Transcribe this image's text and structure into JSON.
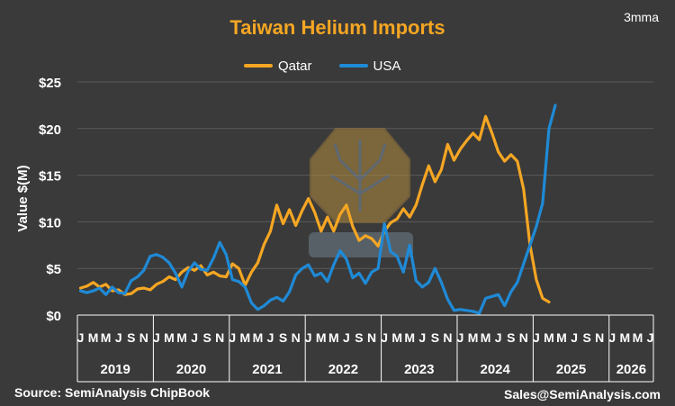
{
  "chart_data": {
    "type": "line",
    "title": "Taiwan Helium Imports",
    "badge": "3mma",
    "ylabel": "Value $(M)",
    "ylim": [
      0,
      25
    ],
    "y_ticks": [
      0,
      5,
      10,
      15,
      20,
      25
    ],
    "y_tick_labels": [
      "$0",
      "$5",
      "$10",
      "$15",
      "$20",
      "$25"
    ],
    "grid": true,
    "legend_position": "top-center",
    "x_start": "2019-01",
    "months_total": 91,
    "month_tick_labels": [
      "J",
      "M",
      "M",
      "J",
      "S",
      "N"
    ],
    "years": [
      "2019",
      "2020",
      "2021",
      "2022",
      "2023",
      "2024",
      "2025",
      "2026"
    ],
    "series": [
      {
        "name": "Qatar",
        "color": "#f5a623",
        "values": [
          2.9,
          3.1,
          3.5,
          3.0,
          3.3,
          2.6,
          2.7,
          2.2,
          2.3,
          2.8,
          2.9,
          2.7,
          3.3,
          3.6,
          4.1,
          3.8,
          4.6,
          5.1,
          4.8,
          5.3,
          4.3,
          4.6,
          4.2,
          4.1,
          5.5,
          5.0,
          3.2,
          4.6,
          5.6,
          7.6,
          9.0,
          11.8,
          9.8,
          11.3,
          9.6,
          11.2,
          12.5,
          11.0,
          9.0,
          10.5,
          9.0,
          10.8,
          11.8,
          9.5,
          8.0,
          8.5,
          8.2,
          7.4,
          9.0,
          9.9,
          10.3,
          11.4,
          10.5,
          11.8,
          14.0,
          16.0,
          14.3,
          15.6,
          18.3,
          16.6,
          17.8,
          18.7,
          19.5,
          18.8,
          21.3,
          19.5,
          17.5,
          16.5,
          17.2,
          16.5,
          13.5,
          7.5,
          3.8,
          1.8,
          1.4
        ],
        "visible_points": 75
      },
      {
        "name": "USA",
        "color": "#1f8ad6",
        "values": [
          2.6,
          2.4,
          2.6,
          2.9,
          2.2,
          3.0,
          2.4,
          2.3,
          3.7,
          4.1,
          4.8,
          6.3,
          6.5,
          6.2,
          5.6,
          4.5,
          3.0,
          4.7,
          5.6,
          4.9,
          4.8,
          6.1,
          7.8,
          6.5,
          3.8,
          3.6,
          3.0,
          1.3,
          0.6,
          1.0,
          1.6,
          1.9,
          1.5,
          2.5,
          4.3,
          5.0,
          5.4,
          4.2,
          4.5,
          3.6,
          5.4,
          6.9,
          6.0,
          4.0,
          4.5,
          3.4,
          4.6,
          5.0,
          9.8,
          6.8,
          6.3,
          4.6,
          7.5,
          3.7,
          3.0,
          3.5,
          5.0,
          3.5,
          1.7,
          0.5,
          0.6,
          0.5,
          0.4,
          0.2,
          1.8,
          2.0,
          2.2,
          1.0,
          2.5,
          3.5,
          5.5,
          7.5,
          9.5,
          12.0,
          20.0,
          22.5
        ],
        "visible_points": 76
      }
    ]
  },
  "footer": {
    "source": "Source: SemiAnalysis ChipBook",
    "contact": "Sales@SemiAnalysis.com"
  }
}
